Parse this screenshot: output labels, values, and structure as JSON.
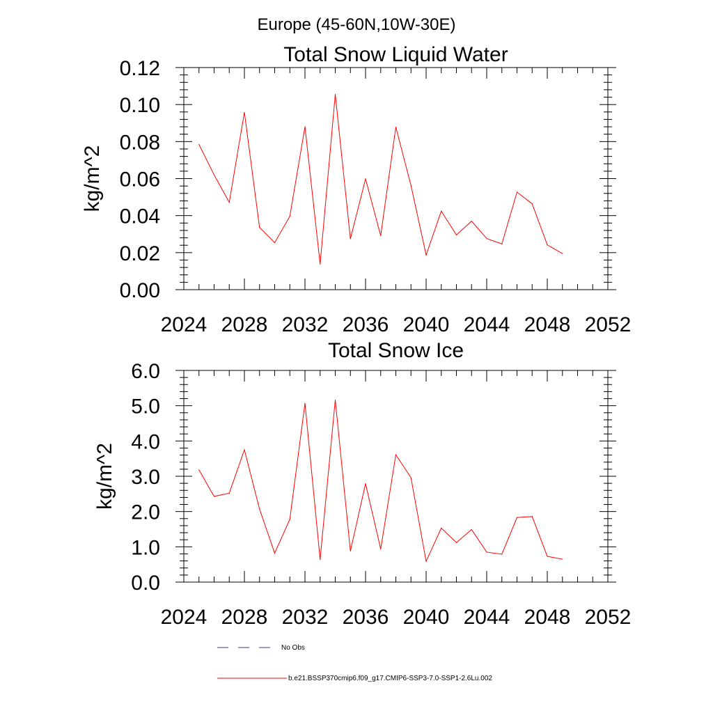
{
  "page_title": "Europe (45-60N,10W-30E)",
  "colors": {
    "model_line": "#ff0000",
    "obs_line": "#3a3a8f",
    "axis": "#000000"
  },
  "legend": {
    "obs_label": "No Obs",
    "model_label": "b.e21.BSSP370cmip6.f09_g17.CMIP6-SSP3-7.0-SSP1-2.6Lu.002"
  },
  "chart_data": [
    {
      "type": "line",
      "title": "Total Snow Liquid Water",
      "xlabel": "",
      "ylabel": "kg/m^2",
      "xlim": [
        2024,
        2052
      ],
      "ylim": [
        0,
        0.12
      ],
      "x_ticks": [
        2024,
        2028,
        2032,
        2036,
        2040,
        2044,
        2048,
        2052
      ],
      "x_tick_labels": [
        "2024",
        "2028",
        "2032",
        "2036",
        "2040",
        "2044",
        "2048",
        "2052"
      ],
      "y_ticks": [
        0,
        0.02,
        0.04,
        0.06,
        0.08,
        0.1,
        0.12
      ],
      "y_tick_labels": [
        "0.00",
        "0.02",
        "0.04",
        "0.06",
        "0.08",
        "0.10",
        "0.12"
      ],
      "grid": false,
      "x": [
        2025,
        2026,
        2027,
        2028,
        2029,
        2030,
        2031,
        2032,
        2033,
        2034,
        2035,
        2036,
        2037,
        2038,
        2039,
        2040,
        2041,
        2042,
        2043,
        2044,
        2045,
        2046,
        2047,
        2048,
        2049
      ],
      "series": [
        {
          "values": [
            0.0785,
            0.062,
            0.0472,
            0.0958,
            0.0336,
            0.0254,
            0.0396,
            0.088,
            0.0138,
            0.1055,
            0.0275,
            0.0598,
            0.0292,
            0.0878,
            0.0563,
            0.0187,
            0.0424,
            0.0296,
            0.037,
            0.0276,
            0.0247,
            0.0527,
            0.0464,
            0.0242,
            0.0195
          ]
        }
      ]
    },
    {
      "type": "line",
      "title": "Total Snow Ice",
      "xlabel": "",
      "ylabel": "kg/m^2",
      "xlim": [
        2024,
        2052
      ],
      "ylim": [
        0,
        6
      ],
      "x_ticks": [
        2024,
        2028,
        2032,
        2036,
        2040,
        2044,
        2048,
        2052
      ],
      "x_tick_labels": [
        "2024",
        "2028",
        "2032",
        "2036",
        "2040",
        "2044",
        "2048",
        "2052"
      ],
      "y_ticks": [
        0,
        1,
        2,
        3,
        4,
        5,
        6
      ],
      "y_tick_labels": [
        "0.0",
        "1.0",
        "2.0",
        "3.0",
        "4.0",
        "5.0",
        "6.0"
      ],
      "grid": false,
      "x": [
        2025,
        2026,
        2027,
        2028,
        2029,
        2030,
        2031,
        2032,
        2033,
        2034,
        2035,
        2036,
        2037,
        2038,
        2039,
        2040,
        2041,
        2042,
        2043,
        2044,
        2045,
        2046,
        2047,
        2048,
        2049
      ],
      "series": [
        {
          "values": [
            3.18,
            2.43,
            2.52,
            3.75,
            2.07,
            0.82,
            1.78,
            5.07,
            0.64,
            5.16,
            0.88,
            2.79,
            0.94,
            3.61,
            2.96,
            0.59,
            1.53,
            1.12,
            1.49,
            0.85,
            0.79,
            1.83,
            1.86,
            0.73,
            0.65
          ]
        }
      ]
    }
  ]
}
